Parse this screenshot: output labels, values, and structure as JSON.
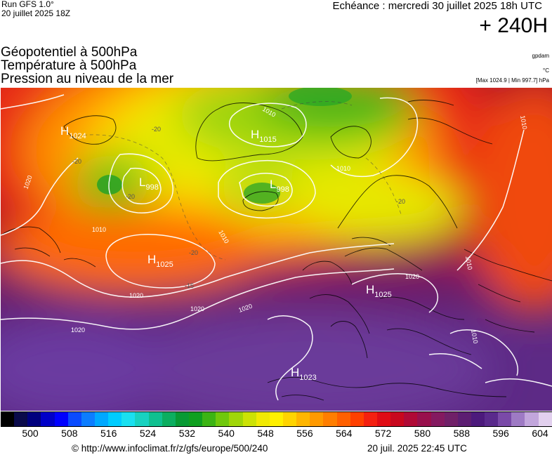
{
  "header": {
    "run": "Run GFS 1.0°",
    "run_date": "20 juillet 2025 18Z",
    "echeance": "Echéance : mercredi 30 juillet 2025 18h UTC",
    "lead": "+ 240H",
    "title1": "Géopotentiel à 500hPa",
    "title2": "Température à 500hPa",
    "title3": "Pression au niveau de la mer",
    "unit_gp": "gpdam",
    "unit_temp": "°C",
    "pressure_range": "[Max 1024.9 | Min 997.7] hPa"
  },
  "map": {
    "pressure_centers": [
      {
        "type": "H",
        "value": "1024"
      },
      {
        "type": "L",
        "value": "998"
      },
      {
        "type": "H",
        "value": "1015"
      },
      {
        "type": "L",
        "value": "998"
      },
      {
        "type": "H",
        "value": "1025"
      },
      {
        "type": "H",
        "value": "1025"
      },
      {
        "type": "H",
        "value": "1023"
      }
    ],
    "isobar_labels": [
      "1020",
      "1010",
      "1010",
      "1010",
      "1010",
      "1020",
      "1020",
      "1020",
      "1020",
      "1020",
      "1010",
      "1010",
      "1010"
    ],
    "temp_labels": [
      "-20",
      "-20",
      "-20",
      "-20",
      "-20",
      "-15"
    ]
  },
  "scale": {
    "colors": [
      "#000000",
      "#0a0a4a",
      "#00007e",
      "#0000c8",
      "#0000ff",
      "#0a4bff",
      "#0d7dff",
      "#00a8ff",
      "#00ccff",
      "#1ae0f0",
      "#18d2c0",
      "#10c090",
      "#0cae60",
      "#089a34",
      "#10a020",
      "#3cb414",
      "#70c80c",
      "#a0d608",
      "#cce206",
      "#f0ea04",
      "#fff000",
      "#ffd400",
      "#ffb600",
      "#ff9a00",
      "#ff7e00",
      "#ff6000",
      "#ff4000",
      "#f42010",
      "#e00c14",
      "#c8081e",
      "#b00a36",
      "#98104c",
      "#841a60",
      "#702068",
      "#5c1e72",
      "#4c1a7c",
      "#5a2a8c",
      "#7a4aa8",
      "#9e7ac4",
      "#c2a6dc",
      "#e2d0ee"
    ],
    "ticks": [
      "500",
      "508",
      "516",
      "524",
      "532",
      "540",
      "548",
      "556",
      "564",
      "572",
      "580",
      "588",
      "596",
      "604"
    ]
  },
  "footer": {
    "url": "© http://www.infoclimat.fr/z/gfs/europe/500/240",
    "generated": "20 juil. 2025 22:45 UTC"
  }
}
